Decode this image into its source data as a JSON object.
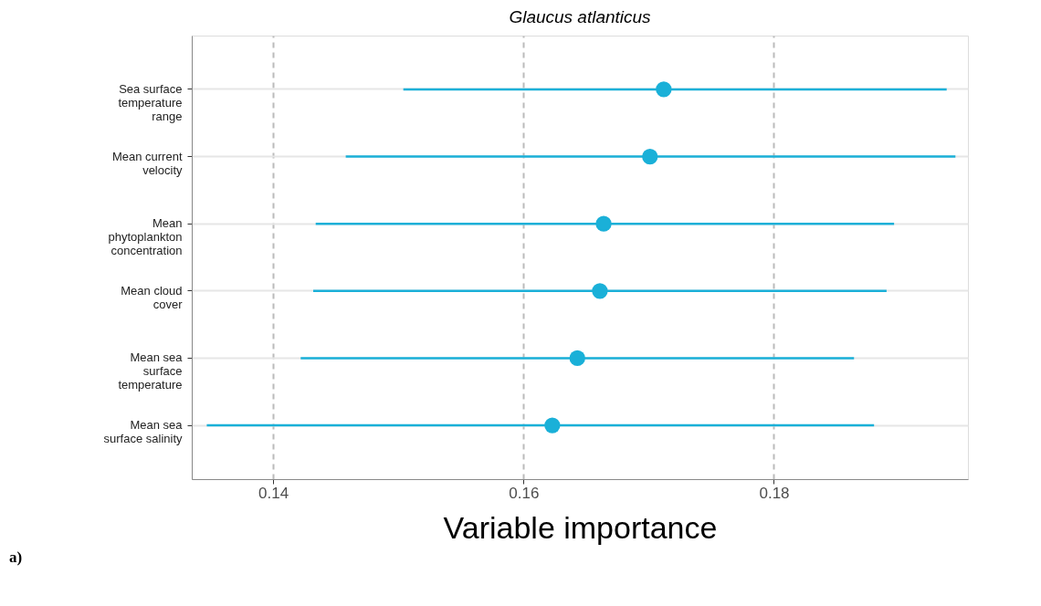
{
  "chart_data": {
    "type": "scatter",
    "title": "Glaucus atlanticus",
    "xlabel": "Variable importance",
    "orientation": "horizontal",
    "categories": [
      "Sea surface\ntemperature\nrange",
      "Mean current\nvelocity",
      "Mean\nphytoplankton\nconcentration",
      "Mean cloud\ncover",
      "Mean sea\nsurface\ntemperature",
      "Mean sea\nsurface salinity"
    ],
    "series": [
      {
        "color": "#1ab0d8",
        "values": [
          0.1712,
          0.1701,
          0.1664,
          0.1661,
          0.1643,
          0.1623
        ],
        "errors": [
          [
            0.1504,
            0.1938
          ],
          [
            0.1458,
            0.1945
          ],
          [
            0.1434,
            0.1896
          ],
          [
            0.1432,
            0.189
          ],
          [
            0.1422,
            0.1864
          ],
          [
            0.1347,
            0.188
          ]
        ]
      }
    ],
    "xlim": [
      0.1335,
      0.1955
    ],
    "xticks": [
      0.14,
      0.16,
      0.18
    ],
    "grid": true,
    "marker": "circle",
    "annotations": [
      "a)"
    ]
  }
}
